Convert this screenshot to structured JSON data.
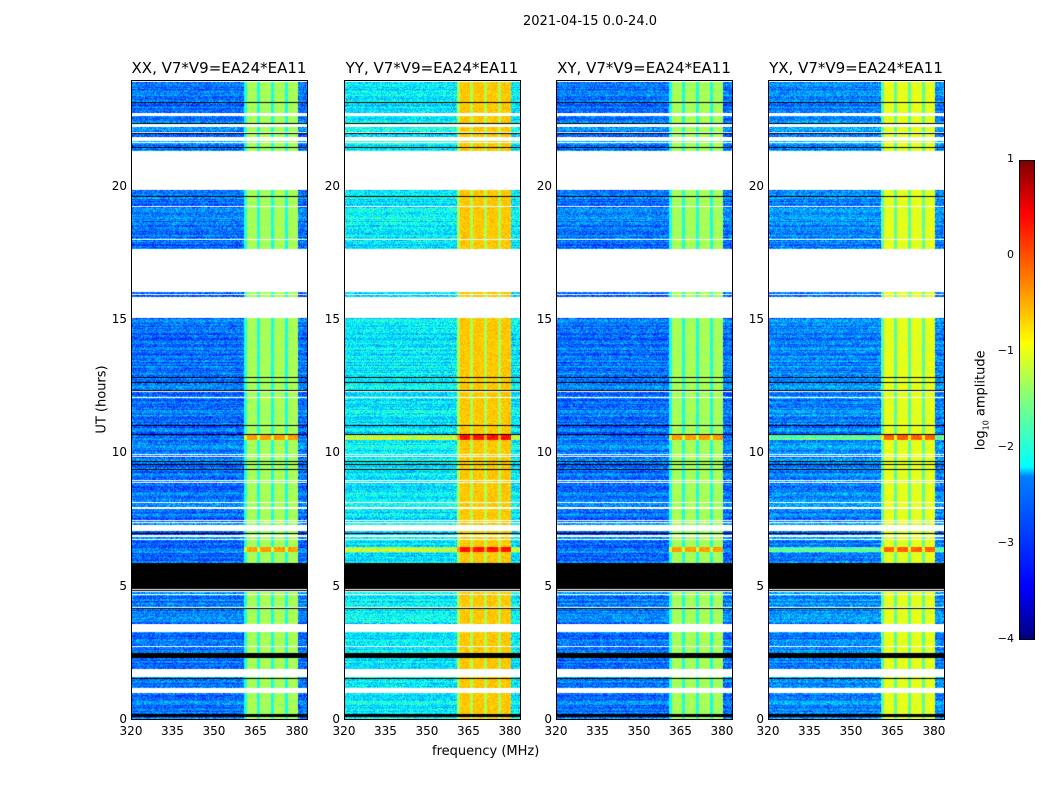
{
  "chart_data": {
    "type": "heatmap",
    "suptitle": "2021-04-15 0.0-24.0",
    "xlabel": "frequency (MHz)",
    "ylabel": "UT (hours)",
    "xlim": [
      320,
      384
    ],
    "ylim": [
      0,
      24
    ],
    "xticks": [
      "320",
      "335",
      "350",
      "365",
      "380"
    ],
    "xtick_values": [
      320,
      335,
      350,
      365,
      380
    ],
    "yticks": [
      "0",
      "5",
      "10",
      "15",
      "20"
    ],
    "ytick_values": [
      0,
      5,
      10,
      15,
      20
    ],
    "colormap": "jet",
    "colorbar": {
      "label": "log10 amplitude",
      "label_main": "log",
      "label_sub": "10",
      "label_rest": " amplitude",
      "range": [
        -4,
        1
      ],
      "ticks": [
        "1",
        "0",
        "−1",
        "−2",
        "−3",
        "−4"
      ],
      "tick_values": [
        1,
        0,
        -1,
        -2,
        -3,
        -4
      ]
    },
    "panels": [
      {
        "title": "XX, V7*V9=EA24*EA11",
        "base_level": -2.8,
        "band_level": -1.3
      },
      {
        "title": "YY, V7*V9=EA24*EA11",
        "base_level": -2.2,
        "band_level": -0.6
      },
      {
        "title": "XY, V7*V9=EA24*EA11",
        "base_level": -2.8,
        "band_level": -1.3
      },
      {
        "title": "YX, V7*V9=EA24*EA11",
        "base_level": -2.7,
        "band_level": -1.0
      }
    ],
    "rfi_band_mhz": [
      360.7,
      380.4
    ],
    "flagged_hours": [
      [
        19.9,
        21.4
      ],
      [
        16.1,
        17.7
      ],
      [
        15.1,
        15.9
      ],
      [
        1.0,
        1.2
      ],
      [
        1.6,
        1.9
      ],
      [
        3.3,
        3.6
      ],
      [
        7.1,
        7.3
      ],
      [
        22.3,
        22.4
      ],
      [
        22.7,
        22.8
      ],
      [
        21.8,
        21.9
      ]
    ],
    "zero_hours": [
      [
        4.8,
        5.9
      ],
      [
        2.3,
        2.5
      ],
      [
        0.1,
        0.2
      ]
    ],
    "bright_rows_hours": [
      [
        10.5,
        10.7
      ],
      [
        6.3,
        6.5
      ]
    ]
  }
}
